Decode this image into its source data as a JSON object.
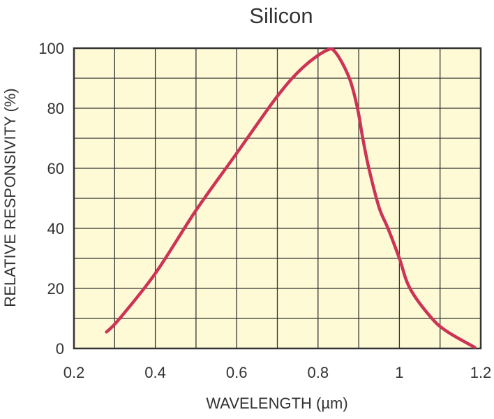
{
  "chart_data": {
    "type": "line",
    "title": "Silicon",
    "xlabel": "WAVELENGTH (µm)",
    "ylabel": "RELATIVE RESPONSIVITY (%)",
    "xlim": [
      0.2,
      1.2
    ],
    "ylim": [
      0,
      100
    ],
    "x_ticks": [
      0.2,
      0.4,
      0.6,
      0.8,
      1,
      1.2
    ],
    "x_tick_labels": [
      "0.2",
      "0.4",
      "0.6",
      "0.8",
      "1",
      "1.2"
    ],
    "y_ticks": [
      0,
      20,
      40,
      60,
      80,
      100
    ],
    "y_tick_labels": [
      "0",
      "20",
      "40",
      "60",
      "80",
      "100"
    ],
    "x_grid_step": 0.1,
    "y_grid_step": 10,
    "grid": true,
    "colors": {
      "background": "#fefad6",
      "line": "#cc3355",
      "grid": "#333333"
    },
    "series": [
      {
        "name": "Silicon",
        "x": [
          0.28,
          0.31,
          0.4,
          0.5,
          0.6,
          0.7,
          0.763,
          0.82,
          0.843,
          0.877,
          0.897,
          0.91,
          0.925,
          0.95,
          0.972,
          1.0,
          1.026,
          1.08,
          1.12,
          1.185
        ],
        "y": [
          5.5,
          9.6,
          25,
          46,
          65,
          84,
          93.6,
          99.2,
          98.6,
          90,
          80,
          70,
          60,
          47,
          40,
          30,
          20,
          10,
          5.4,
          0.4
        ]
      }
    ]
  }
}
